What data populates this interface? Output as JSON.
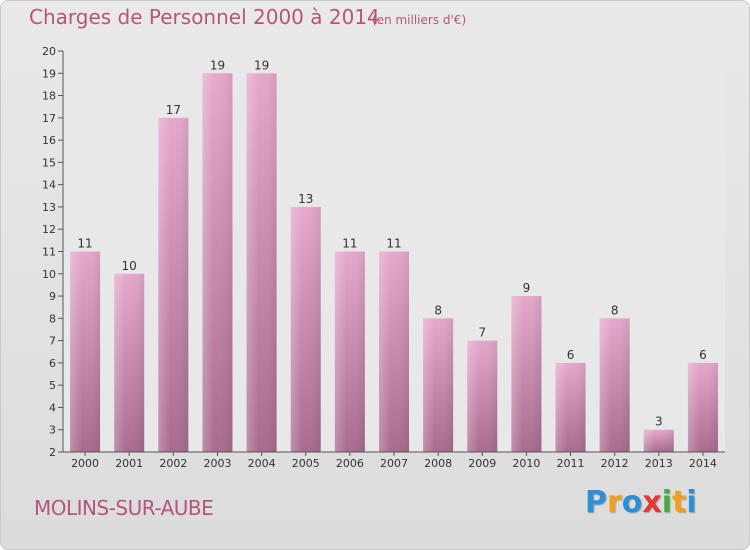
{
  "chart_data": {
    "type": "bar",
    "title": "Charges de Personnel 2000 à 2014",
    "subtitle": "(en milliers d'€)",
    "categories": [
      "2000",
      "2001",
      "2002",
      "2003",
      "2004",
      "2005",
      "2006",
      "2007",
      "2008",
      "2009",
      "2010",
      "2011",
      "2012",
      "2013",
      "2014"
    ],
    "values": [
      11,
      10,
      17,
      19,
      19,
      13,
      11,
      11,
      8,
      7,
      9,
      6,
      8,
      3,
      6
    ],
    "ylim": [
      2,
      20
    ],
    "yticks": [
      2,
      3,
      4,
      5,
      6,
      7,
      8,
      9,
      10,
      11,
      12,
      13,
      14,
      15,
      16,
      17,
      18,
      19,
      20
    ],
    "grid": false,
    "bar_color": "#d994bd"
  },
  "commune": "MOLINS-SUR-AUBE",
  "logo": {
    "letters": [
      "P",
      "r",
      "o",
      "x",
      "i",
      "t",
      "i"
    ],
    "colors": [
      "#2f8fd6",
      "#f0a01e",
      "#2f8fd6",
      "#e53935",
      "#3fae3f",
      "#f0a01e",
      "#2f8fd6"
    ]
  }
}
